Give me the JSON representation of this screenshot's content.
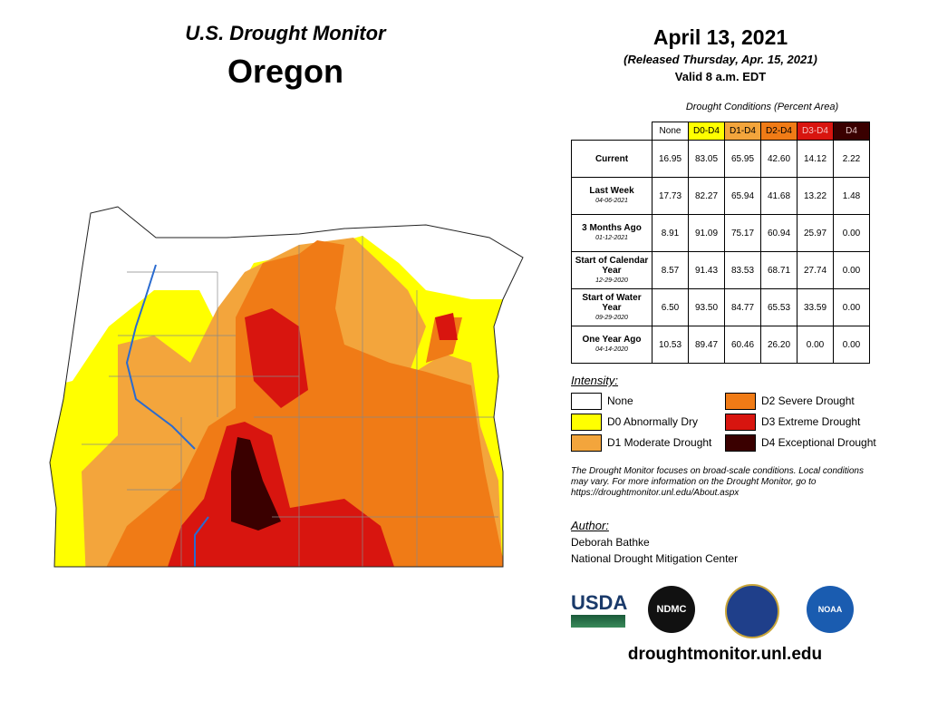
{
  "header": {
    "title": "U.S. Drought Monitor",
    "state": "Oregon",
    "date": "April 13, 2021",
    "released": "(Released Thursday, Apr. 15, 2021)",
    "valid": "Valid 8 a.m. EDT"
  },
  "table": {
    "caption": "Drought Conditions (Percent Area)",
    "columns": [
      {
        "label": "None",
        "color": "#ffffff",
        "text": "#000000"
      },
      {
        "label": "D0-D4",
        "color": "#ffff00",
        "text": "#000000"
      },
      {
        "label": "D1-D4",
        "color": "#f3a53c",
        "text": "#000000"
      },
      {
        "label": "D2-D4",
        "color": "#f07b16",
        "text": "#000000"
      },
      {
        "label": "D3-D4",
        "color": "#d8150f",
        "text": "#f4c0c0"
      },
      {
        "label": "D4",
        "color": "#3a0000",
        "text": "#e0c0c0"
      }
    ],
    "rows": [
      {
        "label": "Current",
        "values": [
          "16.95",
          "83.05",
          "65.95",
          "42.60",
          "14.12",
          "2.22"
        ]
      },
      {
        "label": "Last Week",
        "date": "04-06-2021",
        "values": [
          "17.73",
          "82.27",
          "65.94",
          "41.68",
          "13.22",
          "1.48"
        ]
      },
      {
        "label": "3 Months Ago",
        "date": "01-12-2021",
        "values": [
          "8.91",
          "91.09",
          "75.17",
          "60.94",
          "25.97",
          "0.00"
        ]
      },
      {
        "label": "Start of Calendar Year",
        "date": "12-29-2020",
        "values": [
          "8.57",
          "91.43",
          "83.53",
          "68.71",
          "27.74",
          "0.00"
        ]
      },
      {
        "label": "Start of Water Year",
        "date": "09-29-2020",
        "values": [
          "6.50",
          "93.50",
          "84.77",
          "65.53",
          "33.59",
          "0.00"
        ]
      },
      {
        "label": "One Year Ago",
        "date": "04-14-2020",
        "values": [
          "10.53",
          "89.47",
          "60.46",
          "26.20",
          "0.00",
          "0.00"
        ]
      }
    ]
  },
  "legend": {
    "title": "Intensity:",
    "items": [
      {
        "label": "None",
        "color": "#ffffff"
      },
      {
        "label": "D0 Abnormally Dry",
        "color": "#ffff00"
      },
      {
        "label": "D1 Moderate Drought",
        "color": "#f3a53c"
      },
      {
        "label": "D2 Severe Drought",
        "color": "#f07b16"
      },
      {
        "label": "D3 Extreme Drought",
        "color": "#d8150f"
      },
      {
        "label": "D4 Exceptional Drought",
        "color": "#3a0000"
      }
    ]
  },
  "note": "The Drought Monitor focuses on broad-scale conditions. Local conditions may vary. For more information on the Drought Monitor, go to https://droughtmonitor.unl.edu/About.aspx",
  "author": {
    "title": "Author:",
    "name": "Deborah Bathke",
    "org": "National Drought Mitigation Center"
  },
  "logos": {
    "usda": "USDA",
    "ndmc": "NDMC",
    "noaa": "NOAA"
  },
  "url": "droughtmonitor.unl.edu"
}
